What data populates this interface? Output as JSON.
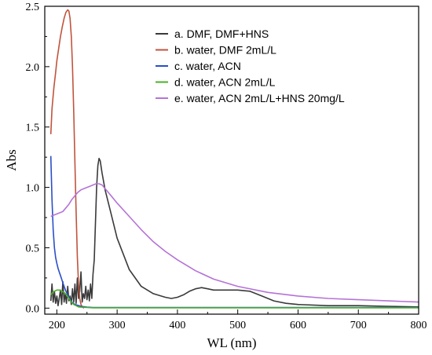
{
  "chart_data": {
    "type": "line",
    "title": "",
    "xlabel": "WL (nm)",
    "ylabel": "Abs",
    "xlim": [
      180,
      800
    ],
    "ylim": [
      -0.05,
      2.5
    ],
    "xticks": [
      200,
      300,
      400,
      500,
      600,
      700,
      800
    ],
    "xtick_labels": [
      "200",
      "300",
      "400",
      "500",
      "600",
      "700",
      "800"
    ],
    "yticks": [
      0.0,
      0.5,
      1.0,
      1.5,
      2.0,
      2.5
    ],
    "ytick_labels": [
      "0.0",
      "0.5",
      "1.0",
      "1.5",
      "2.0",
      "2.5"
    ],
    "grid": false,
    "legend_position": "top-right",
    "series": [
      {
        "name": "a. DMF, DMF+HNS",
        "color": "#3a3a3a",
        "x": [
          190,
          192,
          194,
          196,
          198,
          200,
          202,
          204,
          206,
          208,
          210,
          212,
          214,
          216,
          218,
          220,
          222,
          224,
          226,
          228,
          230,
          232,
          234,
          236,
          238,
          240,
          242,
          244,
          246,
          248,
          250,
          252,
          254,
          256,
          258,
          260,
          262,
          264,
          266,
          268,
          270,
          272,
          275,
          280,
          290,
          300,
          320,
          340,
          360,
          380,
          390,
          400,
          410,
          420,
          430,
          440,
          450,
          460,
          480,
          500,
          520,
          540,
          560,
          580,
          600,
          650,
          700,
          750,
          800
        ],
        "y": [
          0.06,
          0.2,
          0.05,
          0.14,
          0.04,
          0.1,
          0.02,
          0.08,
          0.15,
          0.03,
          0.22,
          0.05,
          0.12,
          0.04,
          0.18,
          0.06,
          0.1,
          0.03,
          0.16,
          0.05,
          0.2,
          0.04,
          0.25,
          0.08,
          0.14,
          0.3,
          0.05,
          0.12,
          0.08,
          0.18,
          0.07,
          0.15,
          0.06,
          0.2,
          0.08,
          0.28,
          0.4,
          0.7,
          1.0,
          1.18,
          1.24,
          1.22,
          1.12,
          0.98,
          0.78,
          0.58,
          0.32,
          0.18,
          0.12,
          0.09,
          0.08,
          0.09,
          0.11,
          0.14,
          0.16,
          0.17,
          0.16,
          0.15,
          0.15,
          0.15,
          0.14,
          0.1,
          0.06,
          0.04,
          0.03,
          0.02,
          0.02,
          0.015,
          0.01
        ]
      },
      {
        "name": "b. water, DMF 2mL/L",
        "color": "#c0543c",
        "x": [
          190,
          192,
          195,
          198,
          200,
          203,
          206,
          209,
          212,
          215,
          218,
          220,
          222,
          224,
          226,
          228,
          230,
          232,
          234,
          236,
          238,
          240,
          242,
          245
        ],
        "y": [
          1.44,
          1.65,
          1.82,
          1.95,
          2.05,
          2.15,
          2.25,
          2.33,
          2.4,
          2.45,
          2.47,
          2.46,
          2.4,
          2.25,
          2.0,
          1.62,
          1.2,
          0.8,
          0.42,
          0.2,
          0.08,
          0.03,
          0.01,
          0.0
        ]
      },
      {
        "name": "c. water, ACN",
        "color": "#2a4fc7",
        "x": [
          190,
          192,
          194,
          196,
          198,
          200,
          202,
          204,
          206,
          208,
          210,
          212,
          215,
          220,
          225,
          230,
          240,
          250,
          260,
          280,
          300,
          400,
          500,
          600,
          700,
          800
        ],
        "y": [
          1.26,
          0.9,
          0.65,
          0.5,
          0.42,
          0.37,
          0.33,
          0.3,
          0.27,
          0.24,
          0.21,
          0.18,
          0.14,
          0.09,
          0.05,
          0.03,
          0.015,
          0.008,
          0.005,
          0.005,
          0.005,
          0.005,
          0.005,
          0.005,
          0.005,
          0.005
        ]
      },
      {
        "name": "d. water, ACN 2mL/L",
        "color": "#4cae2a",
        "x": [
          190,
          193,
          196,
          200,
          204,
          208,
          212,
          216,
          220,
          224,
          228,
          232,
          236,
          240,
          250,
          260,
          280,
          300,
          400,
          500,
          600,
          700,
          800
        ],
        "y": [
          0.11,
          0.13,
          0.14,
          0.15,
          0.15,
          0.14,
          0.13,
          0.11,
          0.08,
          0.05,
          0.03,
          0.02,
          0.01,
          0.008,
          0.005,
          0.003,
          0.003,
          0.003,
          0.003,
          0.003,
          0.003,
          0.003,
          0.003
        ]
      },
      {
        "name": "e. water, ACN 2mL/L+HNS 20mg/L",
        "color": "#b573d6",
        "x": [
          190,
          195,
          200,
          205,
          210,
          215,
          220,
          225,
          230,
          235,
          240,
          245,
          250,
          255,
          260,
          265,
          270,
          275,
          280,
          290,
          300,
          320,
          340,
          360,
          380,
          400,
          430,
          460,
          500,
          550,
          600,
          650,
          700,
          750,
          800
        ],
        "y": [
          0.76,
          0.77,
          0.78,
          0.79,
          0.8,
          0.83,
          0.86,
          0.9,
          0.93,
          0.96,
          0.98,
          0.99,
          1.0,
          1.01,
          1.02,
          1.03,
          1.03,
          1.02,
          0.99,
          0.93,
          0.87,
          0.76,
          0.65,
          0.55,
          0.47,
          0.4,
          0.31,
          0.24,
          0.18,
          0.13,
          0.1,
          0.08,
          0.07,
          0.06,
          0.05
        ]
      }
    ]
  }
}
